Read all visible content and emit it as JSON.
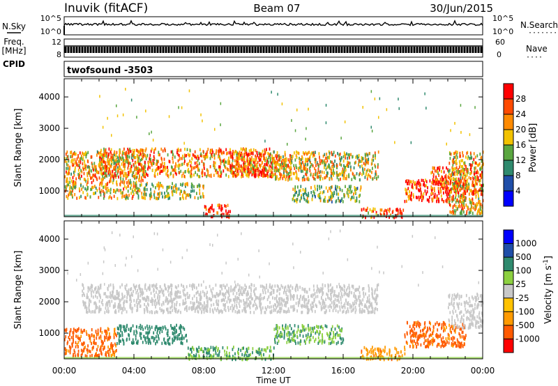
{
  "header": {
    "station": "Inuvik (fitACF)",
    "beam": "Beam 07",
    "date": "30/Jun/2015"
  },
  "left_labels": {
    "nsky": "N.Sky",
    "freq_line1": "Freq.",
    "freq_line2": "[MHz]",
    "cpid": "CPID"
  },
  "right_labels": {
    "nsearch": "N.Search",
    "nsearch_dots": "·······",
    "nave": "Nave",
    "nave_dots": "····"
  },
  "cpid_text": "twofsound  -3503",
  "noise_axis": {
    "left_ticks": [
      "10^5",
      "10^0"
    ],
    "right_ticks": [
      "10^5",
      "10^0"
    ]
  },
  "freq_axis": {
    "left_ticks": [
      "12",
      "8"
    ],
    "right_ticks": [
      "60",
      "0"
    ]
  },
  "colors": {
    "power": [
      "#0000ff",
      "#1f4ea8",
      "#2f8a6e",
      "#5aa640",
      "#f2c200",
      "#ff8a00",
      "#ff4a00",
      "#ff0000"
    ],
    "velocity": [
      "#ff0000",
      "#ff5a00",
      "#ff9a00",
      "#ffc200",
      "#c8c8c8",
      "#8cd040",
      "#2f8a6e",
      "#1f4ea8",
      "#0000ff"
    ],
    "ground_scatter": "#a8a8a8"
  },
  "chart_data": [
    {
      "type": "heatmap",
      "title": "",
      "ylabel": "Slant Range [km]",
      "xlabel": "",
      "ylim": [
        180,
        4580
      ],
      "xlim": [
        0,
        24
      ],
      "yticks": [
        "1000",
        "2000",
        "3000",
        "4000"
      ],
      "colorbar": {
        "label": "Power [dB]",
        "range": [
          0,
          32
        ],
        "ticks": [
          "4",
          "8",
          "12",
          "16",
          "20",
          "24",
          "28"
        ]
      },
      "regions": [
        {
          "t0": 0.0,
          "t1": 4.6,
          "r0": 800,
          "r1": 2300,
          "value": 20
        },
        {
          "t0": 2.0,
          "t1": 12.0,
          "r0": 1500,
          "r1": 2400,
          "value": 22
        },
        {
          "t0": 4.5,
          "t1": 8.0,
          "r0": 800,
          "r1": 1300,
          "value": 16
        },
        {
          "t0": 8.0,
          "t1": 9.5,
          "r0": 200,
          "r1": 600,
          "value": 30
        },
        {
          "t0": 9.5,
          "t1": 13.0,
          "r0": 1500,
          "r1": 2300,
          "value": 24
        },
        {
          "t0": 12.0,
          "t1": 18.0,
          "r0": 1400,
          "r1": 2300,
          "value": 18
        },
        {
          "t0": 13.0,
          "t1": 17.0,
          "r0": 700,
          "r1": 1200,
          "value": 14
        },
        {
          "t0": 17.0,
          "t1": 19.5,
          "r0": 200,
          "r1": 500,
          "value": 26
        },
        {
          "t0": 19.5,
          "t1": 23.0,
          "r0": 700,
          "r1": 1400,
          "value": 28
        },
        {
          "t0": 21.0,
          "t1": 24.0,
          "r0": 1000,
          "r1": 1800,
          "value": 26
        },
        {
          "t0": 22.0,
          "t1": 24.0,
          "r0": 300,
          "r1": 2300,
          "value": 20
        }
      ]
    },
    {
      "type": "heatmap",
      "title": "",
      "ylabel": "Slant Range [km]",
      "xlabel": "Time UT",
      "ylim": [
        180,
        4580
      ],
      "xlim": [
        0,
        24
      ],
      "yticks": [
        "1000",
        "2000",
        "3000",
        "4000"
      ],
      "xticks": [
        "00:00",
        "04:00",
        "08:00",
        "12:00",
        "16:00",
        "20:00",
        "00:00"
      ],
      "colorbar": {
        "label": "Velocity [m s^-1]",
        "ticks": [
          "1000",
          "500",
          "100",
          "25",
          "-25",
          "-100",
          "-500",
          "-1000"
        ]
      },
      "regions": [
        {
          "t0": 0.0,
          "t1": 3.0,
          "r0": 300,
          "r1": 1200,
          "value": -300
        },
        {
          "t0": 1.0,
          "t1": 18.0,
          "r0": 1700,
          "r1": 2600,
          "value": 0
        },
        {
          "t0": 3.0,
          "t1": 7.0,
          "r0": 700,
          "r1": 1300,
          "value": 200
        },
        {
          "t0": 7.0,
          "t1": 12.0,
          "r0": 200,
          "r1": 600,
          "value": 100
        },
        {
          "t0": 12.0,
          "t1": 16.0,
          "r0": 700,
          "r1": 1300,
          "value": 100
        },
        {
          "t0": 17.0,
          "t1": 19.5,
          "r0": 200,
          "r1": 600,
          "value": -200
        },
        {
          "t0": 19.5,
          "t1": 23.0,
          "r0": 600,
          "r1": 1400,
          "value": -300
        },
        {
          "t0": 22.0,
          "t1": 24.0,
          "r0": 1200,
          "r1": 2300,
          "value": 0
        }
      ]
    }
  ]
}
